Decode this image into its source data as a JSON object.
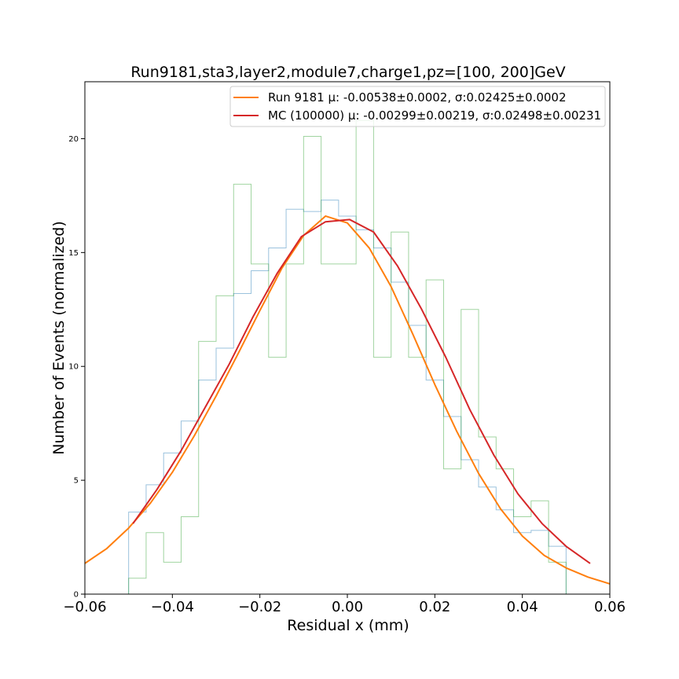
{
  "chart_data": {
    "type": "line",
    "title": "Run9181,sta3,layer2,module7,charge1,pz=[100, 200]GeV",
    "xlabel": "Residual x (mm)",
    "ylabel": "Number of Events (normalized)",
    "xlim": [
      -0.06,
      0.06
    ],
    "ylim": [
      0,
      22.5
    ],
    "xticks": [
      -0.06,
      -0.04,
      -0.02,
      0.0,
      0.02,
      0.04,
      0.06
    ],
    "xtick_labels": [
      "−0.06",
      "−0.04",
      "−0.02",
      "0.00",
      "0.02",
      "0.04",
      "0.06"
    ],
    "yticks": [
      0,
      5,
      10,
      15,
      20
    ],
    "ytick_labels": [
      "0",
      "5",
      "10",
      "15",
      "20"
    ],
    "grid": false,
    "legend_position": "top-right",
    "legend": [
      {
        "label": "Run 9181 μ: -0.00538±0.0002, σ:0.02425±0.0002",
        "color": "#ff7f0e"
      },
      {
        "label": "MC (100000) μ: -0.00299±0.00219, σ:0.02498±0.00231",
        "color": "#d62728"
      }
    ],
    "histograms": [
      {
        "color": "#1f77b4",
        "opacity": 0.45,
        "bin_edges": [
          -0.05,
          -0.046,
          -0.042,
          -0.038,
          -0.034,
          -0.03,
          -0.026,
          -0.022,
          -0.018,
          -0.014,
          -0.01,
          -0.006,
          -0.002,
          0.002,
          0.006,
          0.01,
          0.014,
          0.018,
          0.022,
          0.026,
          0.03,
          0.034,
          0.038,
          0.042,
          0.046,
          0.05
        ],
        "values": [
          3.6,
          4.8,
          6.2,
          7.6,
          9.4,
          10.8,
          13.2,
          14.2,
          15.2,
          16.9,
          16.8,
          17.3,
          16.6,
          16.0,
          15.2,
          13.7,
          11.8,
          9.4,
          7.8,
          5.9,
          4.7,
          3.7,
          2.7,
          2.8,
          2.1
        ]
      },
      {
        "color": "#2ca02c",
        "opacity": 0.45,
        "bin_edges": [
          -0.05,
          -0.046,
          -0.042,
          -0.038,
          -0.034,
          -0.03,
          -0.026,
          -0.022,
          -0.018,
          -0.014,
          -0.01,
          -0.006,
          -0.002,
          0.002,
          0.006,
          0.01,
          0.014,
          0.018,
          0.022,
          0.026,
          0.03,
          0.034,
          0.038,
          0.042,
          0.046,
          0.05
        ],
        "values": [
          0.7,
          2.7,
          1.4,
          3.4,
          11.1,
          13.1,
          18.0,
          14.5,
          10.4,
          14.5,
          20.1,
          14.5,
          14.5,
          20.8,
          10.4,
          15.9,
          10.4,
          13.8,
          5.5,
          12.5,
          6.9,
          5.5,
          3.4,
          4.1,
          1.4
        ]
      }
    ],
    "series": [
      {
        "name": "Run 9181 μ: -0.00538±0.0002, σ:0.02425±0.0002",
        "color": "#ff7f0e",
        "x": [
          -0.06,
          -0.055,
          -0.05,
          -0.045,
          -0.04,
          -0.035,
          -0.03,
          -0.025,
          -0.02,
          -0.015,
          -0.01,
          -0.005,
          0.0,
          0.005,
          0.01,
          0.015,
          0.02,
          0.025,
          0.03,
          0.035,
          0.04,
          0.045,
          0.05,
          0.055,
          0.06
        ],
        "y": [
          1.35,
          2.0,
          2.9,
          4.0,
          5.35,
          6.95,
          8.7,
          10.55,
          12.45,
          14.3,
          15.75,
          16.6,
          16.3,
          15.2,
          13.5,
          11.4,
          9.2,
          7.15,
          5.3,
          3.75,
          2.55,
          1.7,
          1.15,
          0.75,
          0.45
        ]
      },
      {
        "name": "MC (100000) μ: -0.00299±0.00219, σ:0.02498±0.00231",
        "color": "#d62728",
        "x": [
          -0.049,
          -0.0435,
          -0.038,
          -0.0325,
          -0.027,
          -0.0215,
          -0.016,
          -0.0105,
          -0.005,
          0.0005,
          0.006,
          0.0115,
          0.017,
          0.0225,
          0.028,
          0.0335,
          0.039,
          0.0445,
          0.05,
          0.0555
        ],
        "y": [
          3.1,
          4.6,
          6.3,
          8.2,
          10.1,
          12.2,
          14.1,
          15.7,
          16.35,
          16.45,
          15.9,
          14.4,
          12.5,
          10.4,
          8.1,
          6.1,
          4.4,
          3.1,
          2.1,
          1.35
        ]
      }
    ]
  }
}
